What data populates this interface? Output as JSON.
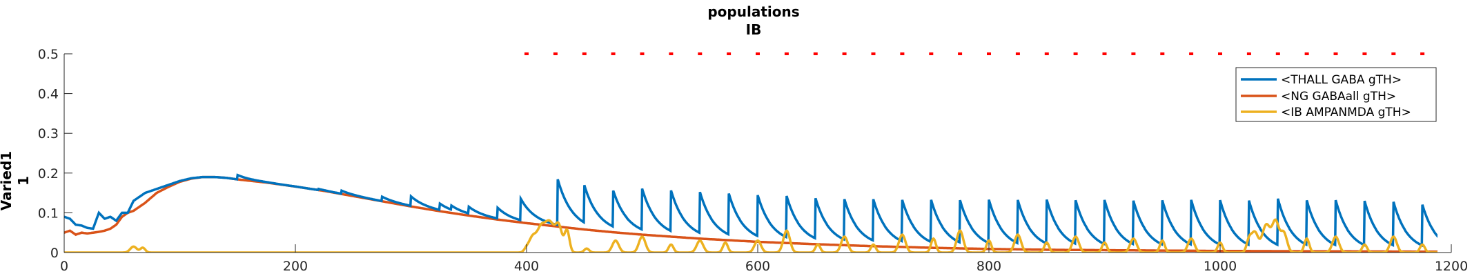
{
  "chart_data": {
    "type": "line",
    "title": [
      "populations",
      "IB"
    ],
    "ylabel": [
      "Varied1",
      "1"
    ],
    "xlabel": "",
    "xlim": [
      0,
      1200
    ],
    "ylim": [
      0,
      0.5
    ],
    "xticks": [
      0,
      200,
      400,
      600,
      800,
      1000,
      1200
    ],
    "yticks": [
      0,
      0.1,
      0.2,
      0.3,
      0.4,
      0.5
    ],
    "xtick_labels": [
      "0",
      "200",
      "400",
      "600",
      "800",
      "1000",
      "1200"
    ],
    "ytick_labels": [
      "0",
      "0.1",
      "0.2",
      "0.3",
      "0.4",
      "0.5"
    ],
    "grid": false,
    "legend_position": "top-right",
    "series": [
      {
        "name": "<THALL GABA gTH>",
        "color": "#0072BD",
        "base_points": [
          [
            0,
            0.09
          ],
          [
            5,
            0.085
          ],
          [
            10,
            0.07
          ],
          [
            15,
            0.068
          ],
          [
            20,
            0.062
          ],
          [
            25,
            0.06
          ],
          [
            30,
            0.1
          ],
          [
            35,
            0.085
          ],
          [
            40,
            0.09
          ],
          [
            45,
            0.08
          ],
          [
            50,
            0.1
          ],
          [
            55,
            0.1
          ],
          [
            60,
            0.13
          ],
          [
            70,
            0.15
          ],
          [
            80,
            0.16
          ],
          [
            90,
            0.17
          ],
          [
            100,
            0.18
          ],
          [
            110,
            0.187
          ],
          [
            120,
            0.19
          ],
          [
            130,
            0.19
          ],
          [
            140,
            0.188
          ],
          [
            150,
            0.184
          ],
          [
            175,
            0.176
          ],
          [
            200,
            0.166
          ],
          [
            225,
            0.155
          ],
          [
            250,
            0.142
          ],
          [
            275,
            0.129
          ],
          [
            300,
            0.116
          ],
          [
            325,
            0.104
          ],
          [
            350,
            0.093
          ],
          [
            375,
            0.083
          ],
          [
            400,
            0.074
          ],
          [
            450,
            0.058
          ],
          [
            500,
            0.045
          ],
          [
            550,
            0.035
          ],
          [
            600,
            0.027
          ],
          [
            650,
            0.021
          ],
          [
            700,
            0.016
          ],
          [
            750,
            0.012
          ],
          [
            800,
            0.009
          ],
          [
            900,
            0.006
          ],
          [
            1000,
            0.004
          ],
          [
            1100,
            0.003
          ],
          [
            1200,
            0.002
          ]
        ],
        "spike_times": [
          150,
          170,
          195,
          220,
          235,
          240,
          275,
          300,
          325,
          335,
          350,
          375,
          395,
          427,
          450,
          475,
          500,
          525,
          550,
          575,
          600,
          625,
          650,
          675,
          700,
          725,
          750,
          775,
          800,
          825,
          850,
          875,
          900,
          925,
          950,
          975,
          1000,
          1025,
          1050,
          1075,
          1100,
          1125,
          1150,
          1175
        ],
        "spike_peaks": [
          0.195,
          0.17,
          0.165,
          0.16,
          0.15,
          0.155,
          0.14,
          0.14,
          0.12,
          0.11,
          0.11,
          0.11,
          0.13,
          0.18,
          0.152,
          0.142,
          0.148,
          0.142,
          0.138,
          0.134,
          0.13,
          0.128,
          0.122,
          0.12,
          0.12,
          0.118,
          0.118,
          0.117,
          0.118,
          0.117,
          0.118,
          0.116,
          0.117,
          0.115,
          0.116,
          0.117,
          0.116,
          0.115,
          0.12,
          0.115,
          0.116,
          0.114,
          0.112,
          0.105
        ],
        "spike_tau": 12
      },
      {
        "name": "<NG GABAall gTH>",
        "color": "#D95319",
        "points": [
          [
            0,
            0.05
          ],
          [
            5,
            0.055
          ],
          [
            10,
            0.045
          ],
          [
            15,
            0.05
          ],
          [
            20,
            0.048
          ],
          [
            25,
            0.05
          ],
          [
            30,
            0.052
          ],
          [
            35,
            0.055
          ],
          [
            40,
            0.06
          ],
          [
            45,
            0.07
          ],
          [
            50,
            0.09
          ],
          [
            55,
            0.1
          ],
          [
            60,
            0.105
          ],
          [
            70,
            0.125
          ],
          [
            80,
            0.15
          ],
          [
            90,
            0.165
          ],
          [
            100,
            0.178
          ],
          [
            110,
            0.186
          ],
          [
            120,
            0.19
          ],
          [
            130,
            0.19
          ],
          [
            140,
            0.188
          ],
          [
            150,
            0.184
          ],
          [
            175,
            0.176
          ],
          [
            200,
            0.166
          ],
          [
            225,
            0.155
          ],
          [
            250,
            0.142
          ],
          [
            275,
            0.129
          ],
          [
            300,
            0.116
          ],
          [
            325,
            0.104
          ],
          [
            350,
            0.093
          ],
          [
            375,
            0.083
          ],
          [
            400,
            0.074
          ],
          [
            425,
            0.066
          ],
          [
            450,
            0.058
          ],
          [
            475,
            0.051
          ],
          [
            500,
            0.045
          ],
          [
            525,
            0.04
          ],
          [
            550,
            0.035
          ],
          [
            575,
            0.031
          ],
          [
            600,
            0.027
          ],
          [
            650,
            0.021
          ],
          [
            700,
            0.016
          ],
          [
            750,
            0.012
          ],
          [
            800,
            0.009
          ],
          [
            850,
            0.007
          ],
          [
            900,
            0.006
          ],
          [
            950,
            0.005
          ],
          [
            1000,
            0.004
          ],
          [
            1050,
            0.0035
          ],
          [
            1100,
            0.003
          ],
          [
            1150,
            0.0025
          ],
          [
            1200,
            0.002
          ]
        ]
      },
      {
        "name": "<IB AMPANMDA gTH>",
        "color": "#EDB120",
        "bursts": [
          [
            60,
            0.015,
            8
          ],
          [
            68,
            0.012,
            6
          ],
          [
            400,
            0.01,
            6
          ],
          [
            405,
            0.035,
            8
          ],
          [
            412,
            0.055,
            10
          ],
          [
            420,
            0.075,
            12
          ],
          [
            428,
            0.06,
            8
          ],
          [
            435,
            0.055,
            6
          ],
          [
            452,
            0.01,
            6
          ],
          [
            477,
            0.03,
            8
          ],
          [
            500,
            0.04,
            8
          ],
          [
            525,
            0.02,
            6
          ],
          [
            550,
            0.03,
            8
          ],
          [
            572,
            0.025,
            6
          ],
          [
            600,
            0.03,
            8
          ],
          [
            625,
            0.055,
            8
          ],
          [
            652,
            0.02,
            6
          ],
          [
            675,
            0.04,
            8
          ],
          [
            700,
            0.02,
            6
          ],
          [
            725,
            0.045,
            8
          ],
          [
            752,
            0.035,
            6
          ],
          [
            775,
            0.055,
            8
          ],
          [
            800,
            0.03,
            6
          ],
          [
            825,
            0.045,
            8
          ],
          [
            850,
            0.025,
            6
          ],
          [
            875,
            0.04,
            8
          ],
          [
            900,
            0.025,
            6
          ],
          [
            925,
            0.035,
            8
          ],
          [
            950,
            0.03,
            6
          ],
          [
            975,
            0.035,
            8
          ],
          [
            1000,
            0.025,
            6
          ],
          [
            1025,
            0.03,
            6
          ],
          [
            1030,
            0.05,
            8
          ],
          [
            1040,
            0.07,
            10
          ],
          [
            1048,
            0.075,
            8
          ],
          [
            1055,
            0.05,
            8
          ],
          [
            1075,
            0.035,
            6
          ],
          [
            1100,
            0.04,
            8
          ],
          [
            1125,
            0.02,
            6
          ],
          [
            1150,
            0.04,
            8
          ],
          [
            1175,
            0.02,
            6
          ]
        ]
      },
      {
        "name": "markers",
        "color": "#FF0000",
        "y": 0.5,
        "x": [
          400,
          425,
          450,
          475,
          500,
          525,
          550,
          575,
          600,
          625,
          650,
          675,
          700,
          725,
          750,
          775,
          800,
          825,
          850,
          875,
          900,
          925,
          950,
          975,
          1000,
          1025,
          1050,
          1075,
          1100,
          1125,
          1150,
          1175
        ]
      }
    ],
    "legend": [
      "<THALL GABA gTH>",
      "<NG GABAall gTH>",
      "<IB AMPANMDA gTH>"
    ]
  }
}
